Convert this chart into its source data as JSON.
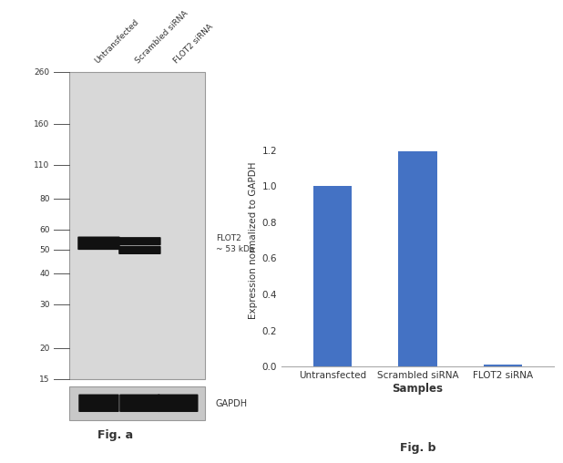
{
  "fig_a": {
    "gel_bg_color": "#d8d8d8",
    "gel_border_color": "#999999",
    "mw_markers": [
      260,
      160,
      110,
      80,
      60,
      50,
      40,
      30,
      20,
      15
    ],
    "mw_log_positions": [
      2.415,
      2.204,
      2.041,
      1.903,
      1.778,
      1.699,
      1.602,
      1.477,
      1.301,
      1.176
    ],
    "band_color": "#111111",
    "lane_labels": [
      "Untransfected",
      "Scrambled siRNA",
      "FLOT2 siRNA"
    ],
    "flot2_annotation": "FLOT2\n~ 53 kDa",
    "gapdh_label": "GAPDH",
    "fig_label": "Fig. a",
    "gapdh_bg_color": "#c8c8c8"
  },
  "fig_b": {
    "categories": [
      "Untransfected",
      "Scrambled siRNA",
      "FLOT2 siRNA"
    ],
    "values": [
      1.0,
      1.19,
      0.01
    ],
    "bar_color": "#4472c4",
    "ylabel": "Expression normalized to GAPDH",
    "xlabel": "Samples",
    "ylim": [
      0,
      1.4
    ],
    "yticks": [
      0,
      0.2,
      0.4,
      0.6,
      0.8,
      1.0,
      1.2
    ],
    "fig_label": "Fig. b",
    "bar_width": 0.45
  },
  "background_color": "#ffffff",
  "text_color": "#333333",
  "font_size_labels": 8,
  "font_size_ticks": 7,
  "font_size_fig_label": 9
}
